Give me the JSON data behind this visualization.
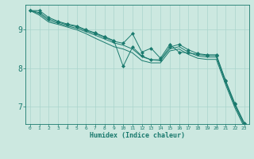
{
  "xlabel": "Humidex (Indice chaleur)",
  "bg_color": "#cce8e0",
  "line_color": "#1a7a6e",
  "grid_color": "#aad4cc",
  "xlim": [
    -0.5,
    23.5
  ],
  "ylim": [
    6.55,
    9.65
  ],
  "xticks": [
    0,
    1,
    2,
    3,
    4,
    5,
    6,
    7,
    8,
    9,
    10,
    11,
    12,
    13,
    14,
    15,
    16,
    17,
    18,
    19,
    20,
    21,
    22,
    23
  ],
  "yticks": [
    7,
    8,
    9
  ],
  "lines": [
    {
      "x": [
        0,
        1,
        2,
        3,
        4,
        5,
        6,
        7,
        8,
        9,
        10,
        11,
        12,
        13,
        14,
        15,
        16,
        17,
        18,
        19,
        20,
        21,
        22,
        23
      ],
      "y": [
        9.5,
        9.5,
        9.32,
        9.22,
        9.15,
        9.1,
        9.0,
        8.92,
        8.82,
        8.72,
        8.05,
        8.55,
        8.32,
        8.22,
        8.22,
        8.55,
        8.62,
        8.48,
        8.38,
        8.35,
        8.35,
        7.68,
        7.08,
        6.58
      ],
      "marker": true
    },
    {
      "x": [
        0,
        1,
        2,
        3,
        4,
        5,
        6,
        7,
        8,
        9,
        10,
        11,
        12,
        13,
        14,
        15,
        16,
        17,
        18,
        19,
        20,
        21,
        22,
        23
      ],
      "y": [
        9.5,
        9.45,
        9.28,
        9.2,
        9.13,
        9.08,
        8.98,
        8.9,
        8.8,
        8.7,
        8.65,
        8.9,
        8.42,
        8.52,
        8.26,
        8.62,
        8.42,
        8.4,
        8.36,
        8.33,
        8.33,
        7.66,
        7.06,
        6.56
      ],
      "marker": true
    },
    {
      "x": [
        0,
        1,
        2,
        3,
        4,
        5,
        6,
        7,
        8,
        9,
        10,
        11,
        12,
        13,
        14,
        15,
        16,
        17,
        18,
        19,
        20,
        21,
        22,
        23
      ],
      "y": [
        9.5,
        9.42,
        9.24,
        9.17,
        9.1,
        9.04,
        8.95,
        8.86,
        8.76,
        8.66,
        8.6,
        8.5,
        8.3,
        8.22,
        8.2,
        8.5,
        8.56,
        8.42,
        8.32,
        8.29,
        8.29,
        7.62,
        7.02,
        6.52
      ],
      "marker": false
    },
    {
      "x": [
        0,
        1,
        2,
        3,
        4,
        5,
        6,
        7,
        8,
        9,
        10,
        11,
        12,
        13,
        14,
        15,
        16,
        17,
        18,
        19,
        20,
        21,
        22,
        23
      ],
      "y": [
        9.5,
        9.38,
        9.2,
        9.14,
        9.07,
        9.0,
        8.9,
        8.78,
        8.67,
        8.56,
        8.5,
        8.4,
        8.2,
        8.14,
        8.14,
        8.45,
        8.5,
        8.36,
        8.26,
        8.23,
        8.23,
        7.57,
        6.97,
        6.47
      ],
      "marker": false
    }
  ]
}
